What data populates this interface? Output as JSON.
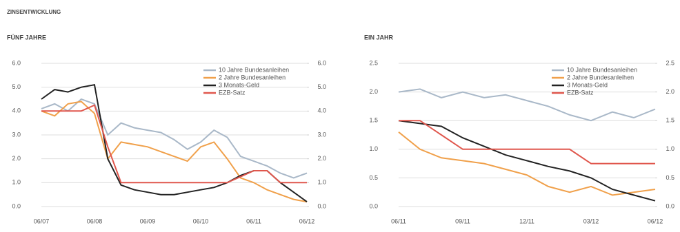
{
  "header": "ZINSENTWICKLUNG",
  "chart_data": [
    {
      "type": "line",
      "title": "FÜNF JAHRE",
      "categories": [
        "06/07",
        null,
        null,
        null,
        "06/08",
        null,
        null,
        null,
        "06/09",
        null,
        null,
        null,
        "06/10",
        null,
        null,
        null,
        "06/11",
        null,
        null,
        null,
        "06/12"
      ],
      "series": [
        {
          "name": "10 Jahre Bundesanleihen",
          "color": "#a9b8c8",
          "values": [
            4.1,
            4.3,
            4.0,
            4.5,
            4.3,
            3.0,
            3.5,
            3.3,
            3.2,
            3.1,
            2.8,
            2.4,
            2.7,
            3.2,
            2.9,
            2.1,
            1.9,
            1.7,
            1.4,
            1.2,
            1.4
          ]
        },
        {
          "name": "2 Jahre Bundesanleihen",
          "color": "#f0a04a",
          "values": [
            4.0,
            3.8,
            4.3,
            4.4,
            3.9,
            2.0,
            2.7,
            2.6,
            2.5,
            2.3,
            2.1,
            1.9,
            2.5,
            2.7,
            2.0,
            1.2,
            1.0,
            0.7,
            0.5,
            0.3,
            0.2
          ]
        },
        {
          "name": "3 Monats-Geld",
          "color": "#222222",
          "values": [
            4.5,
            4.9,
            4.8,
            5.0,
            5.1,
            2.0,
            0.9,
            0.7,
            0.6,
            0.5,
            0.5,
            0.6,
            0.7,
            0.8,
            1.0,
            1.3,
            1.5,
            1.5,
            1.0,
            0.6,
            0.2
          ]
        },
        {
          "name": "EZB-Satz",
          "color": "#e0574d",
          "values": [
            4.0,
            4.0,
            4.0,
            4.0,
            4.25,
            2.5,
            1.0,
            1.0,
            1.0,
            1.0,
            1.0,
            1.0,
            1.0,
            1.0,
            1.0,
            1.25,
            1.5,
            1.5,
            1.0,
            1.0,
            1.0
          ]
        }
      ],
      "ylim": [
        0,
        6
      ],
      "yticks": [
        {
          "value": 0,
          "label": "0.0"
        },
        {
          "value": 1,
          "label": "1.0"
        },
        {
          "value": 2,
          "label": "2.0"
        },
        {
          "value": 3,
          "label": "3.0"
        },
        {
          "value": 4,
          "label": "4.0"
        },
        {
          "value": 5,
          "label": "5.0"
        },
        {
          "value": 6,
          "label": "6.0"
        }
      ],
      "y2lim": [
        0,
        6
      ],
      "y2ticks": [
        {
          "value": 0,
          "label": "0.0"
        },
        {
          "value": 1,
          "label": "1.0"
        },
        {
          "value": 2,
          "label": "2.0"
        },
        {
          "value": 3,
          "label": "3.0"
        },
        {
          "value": 4,
          "label": "4.0"
        },
        {
          "value": 5,
          "label": "5.0"
        },
        {
          "value": 6,
          "label": "6.0"
        }
      ],
      "grid": true,
      "legend": "upper right"
    },
    {
      "type": "line",
      "title": "EIN JAHR",
      "categories": [
        "06/11",
        null,
        null,
        "09/11",
        null,
        null,
        "12/11",
        null,
        null,
        "03/12",
        null,
        null,
        "06/12"
      ],
      "series": [
        {
          "name": "10 Jahre Bundesanleihen",
          "color": "#a9b8c8",
          "values": [
            2.0,
            2.05,
            1.9,
            2.0,
            1.9,
            1.95,
            1.85,
            1.75,
            1.6,
            1.5,
            1.65,
            1.55,
            1.7
          ]
        },
        {
          "name": "2 Jahre Bundesanleihen",
          "color": "#f0a04a",
          "values": [
            1.3,
            1.0,
            0.85,
            0.8,
            0.75,
            0.65,
            0.55,
            0.35,
            0.25,
            0.35,
            0.2,
            0.25,
            0.3
          ]
        },
        {
          "name": "3 Monats-Geld",
          "color": "#222222",
          "values": [
            1.5,
            1.45,
            1.4,
            1.2,
            1.05,
            0.9,
            0.8,
            0.7,
            0.62,
            0.5,
            0.3,
            0.2,
            0.1
          ]
        },
        {
          "name": "EZB-Satz",
          "color": "#e0574d",
          "values": [
            1.5,
            1.5,
            1.25,
            1.0,
            1.0,
            1.0,
            1.0,
            1.0,
            1.0,
            0.75,
            0.75,
            0.75,
            0.75
          ]
        }
      ],
      "ylim": [
        0,
        2.5
      ],
      "yticks": [
        {
          "value": 0,
          "label": "0.0"
        },
        0.5,
        {
          "value": 1,
          "label": "1.0"
        },
        1.5,
        {
          "value": 2,
          "label": "2.0"
        },
        2.5
      ],
      "y2lim": [
        0,
        2.5
      ],
      "y2ticks": [
        {
          "value": 0,
          "label": "0.0"
        },
        0.5,
        {
          "value": 1,
          "label": "1.0"
        },
        1.5,
        {
          "value": 2,
          "label": "2.0"
        },
        2.5
      ],
      "grid": true,
      "legend": "upper right"
    }
  ]
}
